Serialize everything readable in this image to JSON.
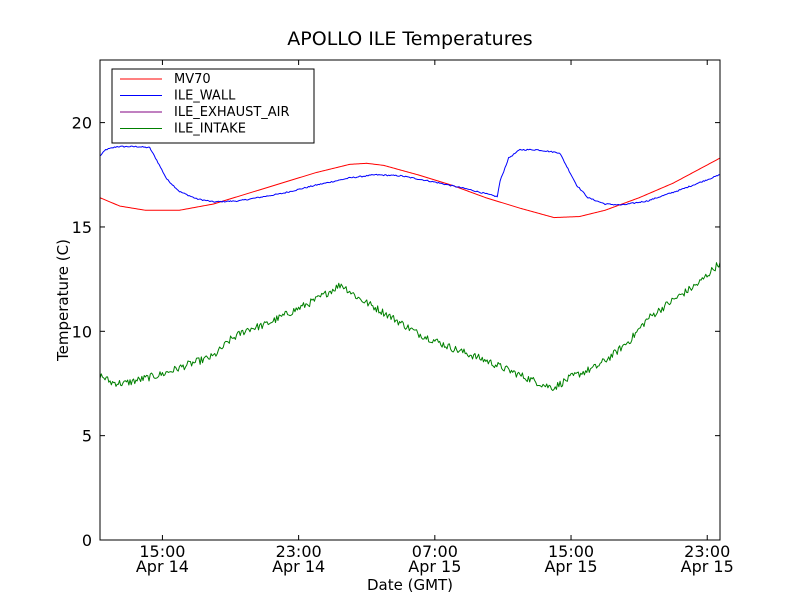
{
  "chart_data": {
    "type": "line",
    "title": "APOLLO ILE Temperatures",
    "xlabel": "Date (GMT)",
    "ylabel": "Temperature (C)",
    "xlim": [
      "2014-04-14T11:20",
      "2014-04-15T23:45"
    ],
    "ylim": [
      0,
      23
    ],
    "yticks": [
      0,
      5,
      10,
      15,
      20
    ],
    "xticks": [
      {
        "value": "2014-04-14T15:00",
        "line1": "15:00",
        "line2": "Apr 14"
      },
      {
        "value": "2014-04-14T23:00",
        "line1": "23:00",
        "line2": "Apr 14"
      },
      {
        "value": "2014-04-15T07:00",
        "line1": "07:00",
        "line2": "Apr 15"
      },
      {
        "value": "2014-04-15T15:00",
        "line1": "15:00",
        "line2": "Apr 15"
      },
      {
        "value": "2014-04-15T23:00",
        "line1": "23:00",
        "line2": "Apr 15"
      }
    ],
    "grid": false,
    "legend_position": "top-left",
    "series": [
      {
        "name": "MV70",
        "color": "#ff0000",
        "noise": 0,
        "points": [
          [
            "2014-04-14T11:20",
            16.4
          ],
          [
            "2014-04-14T12:30",
            16.0
          ],
          [
            "2014-04-14T14:00",
            15.8
          ],
          [
            "2014-04-14T16:00",
            15.8
          ],
          [
            "2014-04-14T18:00",
            16.1
          ],
          [
            "2014-04-14T20:00",
            16.6
          ],
          [
            "2014-04-14T22:00",
            17.1
          ],
          [
            "2014-04-15T00:00",
            17.6
          ],
          [
            "2014-04-15T02:00",
            18.0
          ],
          [
            "2014-04-15T03:00",
            18.05
          ],
          [
            "2014-04-15T04:00",
            17.95
          ],
          [
            "2014-04-15T06:00",
            17.5
          ],
          [
            "2014-04-15T08:00",
            17.0
          ],
          [
            "2014-04-15T10:00",
            16.4
          ],
          [
            "2014-04-15T12:00",
            15.9
          ],
          [
            "2014-04-15T14:00",
            15.45
          ],
          [
            "2014-04-15T15:30",
            15.5
          ],
          [
            "2014-04-15T17:00",
            15.8
          ],
          [
            "2014-04-15T19:00",
            16.4
          ],
          [
            "2014-04-15T21:00",
            17.1
          ],
          [
            "2014-04-15T23:45",
            18.3
          ]
        ]
      },
      {
        "name": "ILE_WALL",
        "color": "#0000ff",
        "noise": 0.03,
        "points": [
          [
            "2014-04-14T11:20",
            18.4
          ],
          [
            "2014-04-14T11:40",
            18.7
          ],
          [
            "2014-04-14T12:20",
            18.85
          ],
          [
            "2014-04-14T13:30",
            18.85
          ],
          [
            "2014-04-14T14:15",
            18.8
          ],
          [
            "2014-04-14T14:40",
            18.2
          ],
          [
            "2014-04-14T15:15",
            17.3
          ],
          [
            "2014-04-14T16:00",
            16.7
          ],
          [
            "2014-04-14T17:00",
            16.35
          ],
          [
            "2014-04-14T18:00",
            16.2
          ],
          [
            "2014-04-14T19:30",
            16.25
          ],
          [
            "2014-04-14T22:00",
            16.6
          ],
          [
            "2014-04-15T00:00",
            17.0
          ],
          [
            "2014-04-15T02:00",
            17.35
          ],
          [
            "2014-04-15T03:30",
            17.5
          ],
          [
            "2014-04-15T05:00",
            17.45
          ],
          [
            "2014-04-15T07:00",
            17.15
          ],
          [
            "2014-04-15T09:00",
            16.8
          ],
          [
            "2014-04-15T10:40",
            16.45
          ],
          [
            "2014-04-15T10:50",
            17.2
          ],
          [
            "2014-04-15T11:20",
            18.3
          ],
          [
            "2014-04-15T12:00",
            18.7
          ],
          [
            "2014-04-15T13:00",
            18.7
          ],
          [
            "2014-04-15T14:20",
            18.55
          ],
          [
            "2014-04-15T14:45",
            17.9
          ],
          [
            "2014-04-15T15:20",
            17.0
          ],
          [
            "2014-04-15T16:00",
            16.4
          ],
          [
            "2014-04-15T17:00",
            16.1
          ],
          [
            "2014-04-15T18:00",
            16.05
          ],
          [
            "2014-04-15T19:30",
            16.25
          ],
          [
            "2014-04-15T21:30",
            16.8
          ],
          [
            "2014-04-15T23:45",
            17.5
          ]
        ]
      },
      {
        "name": "ILE_EXHAUST_AIR",
        "color": "#800080",
        "noise": 0,
        "points": []
      },
      {
        "name": "ILE_INTAKE",
        "color": "#008000",
        "noise": 0.18,
        "points": [
          [
            "2014-04-14T11:20",
            7.9
          ],
          [
            "2014-04-14T12:00",
            7.55
          ],
          [
            "2014-04-14T12:45",
            7.5
          ],
          [
            "2014-04-14T14:00",
            7.75
          ],
          [
            "2014-04-14T15:00",
            7.95
          ],
          [
            "2014-04-14T16:30",
            8.4
          ],
          [
            "2014-04-14T18:00",
            8.8
          ],
          [
            "2014-04-14T19:00",
            9.6
          ],
          [
            "2014-04-14T20:00",
            10.1
          ],
          [
            "2014-04-14T21:00",
            10.3
          ],
          [
            "2014-04-14T22:30",
            10.9
          ],
          [
            "2014-04-15T00:00",
            11.5
          ],
          [
            "2014-04-15T01:00",
            12.0
          ],
          [
            "2014-04-15T01:30",
            12.25
          ],
          [
            "2014-04-15T02:30",
            11.6
          ],
          [
            "2014-04-15T04:00",
            10.9
          ],
          [
            "2014-04-15T06:00",
            9.9
          ],
          [
            "2014-04-15T08:00",
            9.2
          ],
          [
            "2014-04-15T10:00",
            8.6
          ],
          [
            "2014-04-15T12:00",
            7.9
          ],
          [
            "2014-04-15T13:30",
            7.4
          ],
          [
            "2014-04-15T14:00",
            7.3
          ],
          [
            "2014-04-15T15:00",
            7.8
          ],
          [
            "2014-04-15T16:30",
            8.3
          ],
          [
            "2014-04-15T17:30",
            8.9
          ],
          [
            "2014-04-15T18:30",
            9.6
          ],
          [
            "2014-04-15T19:30",
            10.6
          ],
          [
            "2014-04-15T21:00",
            11.5
          ],
          [
            "2014-04-15T22:30",
            12.3
          ],
          [
            "2014-04-15T23:45",
            13.3
          ]
        ]
      }
    ]
  }
}
